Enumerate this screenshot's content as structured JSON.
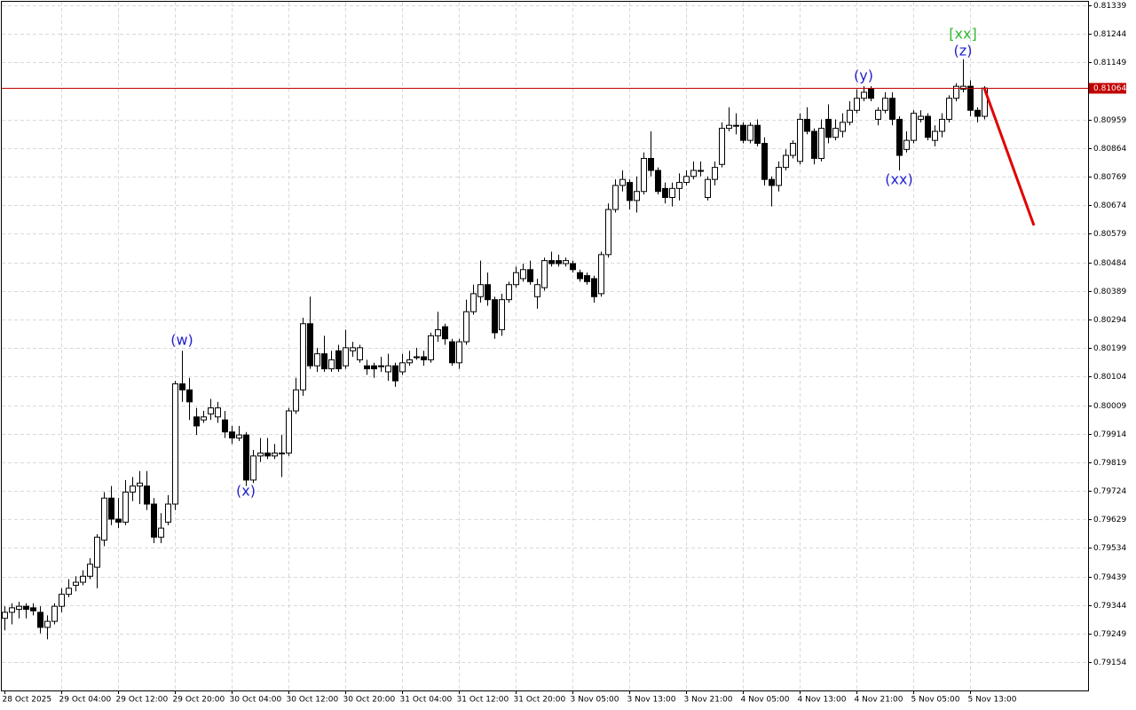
{
  "chart_data": {
    "type": "candlestick",
    "categories": [
      "28 Oct 2025",
      null,
      null,
      null,
      null,
      null,
      null,
      null,
      "29 Oct 04:00",
      null,
      null,
      null,
      null,
      null,
      null,
      null,
      "29 Oct 12:00",
      null,
      null,
      null,
      null,
      null,
      null,
      null,
      "29 Oct 20:00",
      null,
      null,
      null,
      null,
      null,
      null,
      null,
      "30 Oct 04:00",
      null,
      null,
      null,
      null,
      null,
      null,
      null,
      "30 Oct 12:00",
      null,
      null,
      null,
      null,
      null,
      null,
      null,
      "30 Oct 20:00",
      null,
      null,
      null,
      null,
      null,
      null,
      null,
      "31 Oct 04:00",
      null,
      null,
      null,
      null,
      null,
      null,
      null,
      "31 Oct 12:00",
      null,
      null,
      null,
      null,
      null,
      null,
      null,
      "31 Oct 20:00",
      null,
      null,
      null,
      null,
      null,
      null,
      null,
      "3 Nov 05:00",
      null,
      null,
      null,
      null,
      null,
      null,
      null,
      "3 Nov 13:00",
      null,
      null,
      null,
      null,
      null,
      null,
      null,
      "3 Nov 21:00",
      null,
      null,
      null,
      null,
      null,
      null,
      null,
      "4 Nov 05:00",
      null,
      null,
      null,
      null,
      null,
      null,
      null,
      "4 Nov 13:00",
      null,
      null,
      null,
      null,
      null,
      null,
      null,
      "4 Nov 21:00",
      null,
      null,
      null,
      null,
      null,
      null,
      null,
      "5 Nov 05:00",
      null,
      null,
      null,
      null,
      null,
      null,
      null,
      "5 Nov 13:00",
      null,
      null
    ],
    "open": [
      0.793,
      0.7932,
      0.7933,
      0.7934,
      0.79335,
      0.7932,
      0.7927,
      0.7929,
      0.7934,
      0.7938,
      0.7941,
      0.7942,
      0.7944,
      0.7947,
      0.7956,
      0.797,
      0.7963,
      0.7962,
      0.7972,
      0.7974,
      0.7974,
      0.7968,
      0.7957,
      0.7962,
      0.7968,
      0.8008,
      0.8006,
      0.7997,
      0.7996,
      0.7998,
      0.7997,
      0.7996,
      0.7992,
      0.799,
      0.7991,
      0.7976,
      0.7984,
      0.7985,
      0.7984,
      0.7985,
      0.7985,
      0.7999,
      0.8006,
      0.8028,
      0.8014,
      0.8018,
      0.8013,
      0.8019,
      0.8014,
      0.8019,
      0.8016,
      0.8014,
      0.8014,
      0.8014,
      0.8012,
      0.8014,
      0.8012,
      0.8015,
      0.8017,
      0.8017,
      0.8016,
      0.8024,
      0.8027,
      0.8022,
      0.8015,
      0.8022,
      0.8032,
      0.8037,
      0.8041,
      0.8036,
      0.8026,
      0.8036,
      0.8041,
      0.8043,
      0.8046,
      0.8037,
      0.804,
      0.8049,
      0.8049,
      0.8048,
      0.8048,
      0.8045,
      0.8044,
      0.8043,
      0.8038,
      0.8051,
      0.8066,
      0.8074,
      0.8075,
      0.8069,
      0.8072,
      0.8083,
      0.8079,
      0.8073,
      0.807,
      0.8073,
      0.8075,
      0.8077,
      0.8079,
      0.807,
      0.8076,
      0.8081,
      0.8093,
      0.8094,
      0.8094,
      0.8089,
      0.8094,
      0.8088,
      0.8076,
      0.8074,
      0.808,
      0.8084,
      0.8082,
      0.8096,
      0.8092,
      0.8083,
      0.8096,
      0.809,
      0.8092,
      0.8095,
      0.8099,
      0.8103,
      0.8106,
      0.8096,
      0.8099,
      0.8103,
      0.8096,
      0.8086,
      0.8089,
      0.8096,
      0.8097,
      0.8089,
      0.8092,
      0.8096,
      0.8103,
      0.8106,
      0.8107,
      0.8099,
      0.8097
    ],
    "high": [
      0.7934,
      0.7935,
      0.79355,
      0.7935,
      0.7935,
      0.7934,
      0.7931,
      0.7935,
      0.794,
      0.7943,
      0.7944,
      0.7946,
      0.795,
      0.7958,
      0.7972,
      0.7974,
      0.797,
      0.7976,
      0.7977,
      0.7979,
      0.7979,
      0.797,
      0.7965,
      0.7971,
      0.8009,
      0.8019,
      0.801,
      0.8,
      0.7999,
      0.8003,
      0.8002,
      0.7999,
      0.7994,
      0.7994,
      0.7992,
      0.7986,
      0.799,
      0.799,
      0.7988,
      0.7991,
      0.8,
      0.801,
      0.803,
      0.8037,
      0.802,
      0.8024,
      0.8019,
      0.8021,
      0.8026,
      0.8022,
      0.8021,
      0.8016,
      0.8015,
      0.8017,
      0.8018,
      0.8015,
      0.8018,
      0.8019,
      0.802,
      0.8019,
      0.8025,
      0.8032,
      0.8028,
      0.8023,
      0.8023,
      0.8036,
      0.8041,
      0.8049,
      0.8045,
      0.8037,
      0.8038,
      0.8042,
      0.8047,
      0.8048,
      0.8049,
      0.8043,
      0.805,
      0.8052,
      0.8051,
      0.805,
      0.8049,
      0.8046,
      0.8045,
      0.8044,
      0.8052,
      0.8068,
      0.8076,
      0.8079,
      0.8076,
      0.8077,
      0.8085,
      0.8092,
      0.808,
      0.8075,
      0.8075,
      0.8078,
      0.8079,
      0.8082,
      0.8082,
      0.8077,
      0.8082,
      0.8095,
      0.81,
      0.8098,
      0.8095,
      0.8095,
      0.8096,
      0.809,
      0.8077,
      0.8082,
      0.8086,
      0.8089,
      0.8098,
      0.81,
      0.8093,
      0.8096,
      0.8101,
      0.8096,
      0.8098,
      0.8102,
      0.8106,
      0.8107,
      0.8107,
      0.81,
      0.8105,
      0.8105,
      0.8097,
      0.8092,
      0.8099,
      0.8099,
      0.8098,
      0.8094,
      0.8098,
      0.8104,
      0.8108,
      0.8116,
      0.8109,
      0.81,
      0.8107
    ],
    "low": [
      0.7926,
      0.7928,
      0.793,
      0.793,
      0.7931,
      0.7925,
      0.7923,
      0.7928,
      0.7932,
      0.7937,
      0.7939,
      0.7941,
      0.7943,
      0.794,
      0.7954,
      0.7961,
      0.796,
      0.7961,
      0.7969,
      0.7968,
      0.7966,
      0.7955,
      0.7955,
      0.7961,
      0.7966,
      0.8002,
      0.7996,
      0.7991,
      0.7995,
      0.7996,
      0.7995,
      0.799,
      0.7988,
      0.7989,
      0.7974,
      0.7975,
      0.7982,
      0.7983,
      0.7983,
      0.7977,
      0.7984,
      0.7998,
      0.8004,
      0.8013,
      0.8012,
      0.8012,
      0.8012,
      0.8012,
      0.8013,
      0.8017,
      0.8015,
      0.8011,
      0.801,
      0.8012,
      0.8009,
      0.8007,
      0.8011,
      0.8014,
      0.8016,
      0.8014,
      0.8015,
      0.8022,
      0.8021,
      0.8014,
      0.8013,
      0.8021,
      0.8031,
      0.8035,
      0.8034,
      0.8023,
      0.8024,
      0.8035,
      0.804,
      0.8042,
      0.8041,
      0.8033,
      0.8039,
      0.8047,
      0.8047,
      0.8047,
      0.8045,
      0.8042,
      0.8041,
      0.8035,
      0.8037,
      0.805,
      0.8065,
      0.8072,
      0.8066,
      0.8065,
      0.8071,
      0.8077,
      0.8071,
      0.8068,
      0.8067,
      0.8069,
      0.8074,
      0.8076,
      0.8077,
      0.8069,
      0.8074,
      0.808,
      0.8092,
      0.8091,
      0.8088,
      0.8088,
      0.8087,
      0.8074,
      0.8067,
      0.8072,
      0.8079,
      0.8083,
      0.8081,
      0.8091,
      0.8081,
      0.8082,
      0.8088,
      0.8089,
      0.809,
      0.8094,
      0.8098,
      0.8102,
      0.8102,
      0.8094,
      0.8098,
      0.8094,
      0.8079,
      0.8085,
      0.8088,
      0.8095,
      0.8089,
      0.8087,
      0.809,
      0.8095,
      0.8102,
      0.8105,
      0.8097,
      0.8095,
      0.8096
    ],
    "close": [
      0.7932,
      0.79335,
      0.7934,
      0.7933,
      0.79325,
      0.7927,
      0.7929,
      0.7934,
      0.7938,
      0.794,
      0.7942,
      0.7944,
      0.7948,
      0.7957,
      0.797,
      0.7963,
      0.7962,
      0.7972,
      0.7974,
      0.7975,
      0.7968,
      0.7957,
      0.796,
      0.7968,
      0.8008,
      0.8006,
      0.8002,
      0.7994,
      0.7997,
      0.8,
      0.8,
      0.7992,
      0.799,
      0.7991,
      0.7976,
      0.7984,
      0.7985,
      0.7984,
      0.7985,
      0.7985,
      0.7999,
      0.8006,
      0.8028,
      0.8014,
      0.8018,
      0.8013,
      0.8016,
      0.8013,
      0.802,
      0.802,
      0.802,
      0.8013,
      0.8013,
      0.8014,
      0.8014,
      0.8009,
      0.8015,
      0.8016,
      0.8017,
      0.8016,
      0.8024,
      0.8026,
      0.8023,
      0.8015,
      0.8022,
      0.8032,
      0.8038,
      0.8041,
      0.8036,
      0.8025,
      0.8036,
      0.8041,
      0.8045,
      0.8046,
      0.8042,
      0.8041,
      0.8049,
      0.8048,
      0.8048,
      0.8049,
      0.8046,
      0.8043,
      0.8042,
      0.8037,
      0.8051,
      0.8066,
      0.8074,
      0.8076,
      0.8069,
      0.8072,
      0.8083,
      0.8079,
      0.8072,
      0.807,
      0.8073,
      0.8075,
      0.8077,
      0.8079,
      0.8079,
      0.8076,
      0.808,
      0.8093,
      0.8094,
      0.8094,
      0.8089,
      0.8094,
      0.8088,
      0.8076,
      0.8074,
      0.808,
      0.8084,
      0.8088,
      0.8096,
      0.8092,
      0.8083,
      0.8093,
      0.809,
      0.8093,
      0.8095,
      0.8099,
      0.8103,
      0.8105,
      0.8103,
      0.8099,
      0.8103,
      0.8096,
      0.8084,
      0.8089,
      0.8098,
      0.8097,
      0.809,
      0.8092,
      0.8096,
      0.8103,
      0.8107,
      0.8107,
      0.8099,
      0.8097,
      0.81064
    ],
    "up_color": "#ffffff",
    "down_color": "#000000",
    "ylim": [
      0.7906,
      0.81351
    ],
    "yticks": [
      0.79154,
      0.79249,
      0.79344,
      0.79439,
      0.79534,
      0.79629,
      0.79724,
      0.79819,
      0.79914,
      0.80009,
      0.80104,
      0.80199,
      0.80294,
      0.80389,
      0.80484,
      0.80579,
      0.80674,
      0.80769,
      0.80864,
      0.80959,
      0.81149,
      0.81244,
      0.81339
    ],
    "grid": true,
    "current_price": {
      "value": 0.81064,
      "color": "#c00000"
    },
    "forecast": {
      "color": "#e00000",
      "at": [
        138,
        145
      ],
      "values": [
        0.81064,
        0.80607
      ]
    },
    "annotations": [
      {
        "text": "(w)",
        "at": 25,
        "price": 0.80223,
        "color": "#1f1fd0"
      },
      {
        "text": "(x)",
        "at": 34,
        "price": 0.79721,
        "color": "#1f1fd0"
      },
      {
        "text": "(y)",
        "at": 121,
        "price": 0.81103,
        "color": "#1f1fd0"
      },
      {
        "text": "(xx)",
        "at": 126,
        "price": 0.80757,
        "color": "#1f1fd0"
      },
      {
        "text": "(z)",
        "at": 135,
        "price": 0.81186,
        "color": "#1f1fd0"
      },
      {
        "text": "[xx]",
        "at": 135,
        "price": 0.81242,
        "color": "#2eb82e"
      }
    ]
  }
}
